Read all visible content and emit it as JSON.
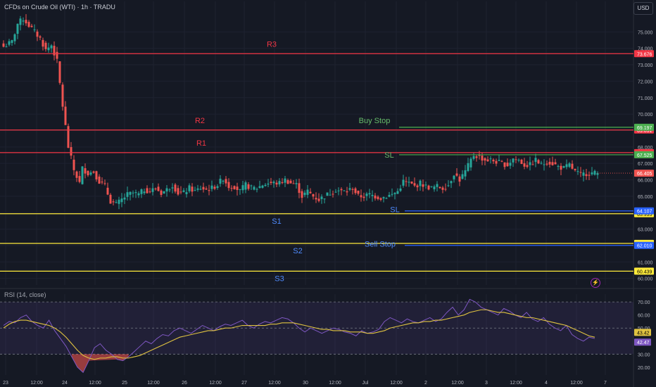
{
  "header": {
    "title": "CFDs on Crude Oil (WTI) · 1h · TRADU",
    "currency_button": "USD",
    "rsi_title": "RSI (14, close)",
    "bolt_icon": "lightning-icon"
  },
  "colors": {
    "background": "#151924",
    "bull": "#26a69a",
    "bear": "#ef5350",
    "resistance": "#f23645",
    "support": "#ffeb3b",
    "buy_stop": "#4caf50",
    "sell_stop": "#2962ff",
    "rsi_line": "#7e57c2",
    "rsi_ma": "#e0c341"
  },
  "chart_data": [
    {
      "type": "candlestick",
      "title": "CFDs on Crude Oil (WTI) · 1h · TRADU",
      "x_ticks": [
        "23",
        "12:00",
        "24",
        "12:00",
        "25",
        "12:00",
        "26",
        "12:00",
        "27",
        "12:00",
        "30",
        "12:00",
        "Jul",
        "12:00",
        "2",
        "12:00",
        "3",
        "12:00",
        "4",
        "12:00",
        "7"
      ],
      "y_ticks": [
        "75.000",
        "74.000",
        "73.000",
        "72.000",
        "71.000",
        "70.000",
        "69.000",
        "68.000",
        "67.000",
        "66.000",
        "65.000",
        "64.000",
        "63.000",
        "62.000",
        "61.000",
        "60.000"
      ],
      "ylim": [
        59.6,
        76.0
      ],
      "close_path": [
        [
          0,
          74.1
        ],
        [
          3,
          74.4
        ],
        [
          5,
          75.5
        ],
        [
          7,
          75.8
        ],
        [
          9,
          75.4
        ],
        [
          11,
          75.0
        ],
        [
          13,
          74.6
        ],
        [
          15,
          73.9
        ],
        [
          17,
          74.2
        ],
        [
          19,
          73.2
        ],
        [
          21,
          70.5
        ],
        [
          23,
          68.0
        ],
        [
          25,
          66.6
        ],
        [
          27,
          65.8
        ],
        [
          28,
          66.7
        ],
        [
          30,
          66.4
        ],
        [
          32,
          66.5
        ],
        [
          34,
          65.9
        ],
        [
          36,
          65.6
        ],
        [
          38,
          64.7
        ],
        [
          40,
          64.5
        ],
        [
          42,
          64.8
        ],
        [
          44,
          65.1
        ],
        [
          46,
          65.2
        ],
        [
          48,
          65.1
        ],
        [
          50,
          65.4
        ],
        [
          52,
          65.3
        ],
        [
          54,
          65.5
        ],
        [
          56,
          65.2
        ],
        [
          58,
          65.4
        ],
        [
          60,
          65.7
        ],
        [
          62,
          65.2
        ],
        [
          64,
          65.2
        ],
        [
          66,
          65.5
        ],
        [
          68,
          65.3
        ],
        [
          70,
          65.5
        ],
        [
          72,
          65.4
        ],
        [
          74,
          65.5
        ],
        [
          76,
          65.7
        ],
        [
          78,
          66.1
        ],
        [
          80,
          65.6
        ],
        [
          82,
          65.6
        ],
        [
          84,
          65.3
        ],
        [
          86,
          65.7
        ],
        [
          88,
          65.5
        ],
        [
          90,
          65.5
        ],
        [
          92,
          65.7
        ],
        [
          94,
          65.8
        ],
        [
          96,
          65.8
        ],
        [
          98,
          65.8
        ],
        [
          100,
          66.0
        ],
        [
          102,
          65.8
        ],
        [
          104,
          65.7
        ],
        [
          106,
          65.0
        ],
        [
          108,
          65.3
        ],
        [
          110,
          65.0
        ],
        [
          112,
          64.8
        ],
        [
          114,
          65.0
        ],
        [
          116,
          65.2
        ],
        [
          118,
          65.4
        ],
        [
          120,
          65.3
        ],
        [
          122,
          65.3
        ],
        [
          124,
          65.5
        ],
        [
          126,
          65.0
        ],
        [
          128,
          65.0
        ],
        [
          130,
          65.1
        ],
        [
          132,
          65.0
        ],
        [
          134,
          64.9
        ],
        [
          136,
          65.0
        ],
        [
          138,
          65.1
        ],
        [
          140,
          65.3
        ],
        [
          142,
          65.9
        ],
        [
          144,
          65.8
        ],
        [
          146,
          65.6
        ],
        [
          148,
          65.8
        ],
        [
          150,
          65.6
        ],
        [
          152,
          65.5
        ],
        [
          154,
          65.6
        ],
        [
          156,
          65.5
        ],
        [
          158,
          65.7
        ],
        [
          160,
          66.4
        ],
        [
          162,
          66.0
        ],
        [
          164,
          66.5
        ],
        [
          166,
          67.2
        ],
        [
          167,
          67.5
        ],
        [
          169,
          67.4
        ],
        [
          171,
          67.2
        ],
        [
          173,
          67.2
        ],
        [
          175,
          67.1
        ],
        [
          177,
          67.0
        ],
        [
          179,
          66.9
        ],
        [
          181,
          67.3
        ],
        [
          183,
          67.2
        ],
        [
          185,
          66.9
        ],
        [
          187,
          66.9
        ],
        [
          189,
          67.2
        ],
        [
          191,
          66.9
        ],
        [
          193,
          67.1
        ],
        [
          195,
          67.0
        ],
        [
          197,
          66.8
        ],
        [
          199,
          66.7
        ],
        [
          201,
          66.9
        ],
        [
          203,
          66.5
        ],
        [
          205,
          66.3
        ],
        [
          207,
          66.4
        ],
        [
          209,
          66.4
        ],
        [
          211,
          66.4
        ]
      ],
      "levels": [
        {
          "label": "R3",
          "value": 73.676,
          "price_tag": "73.676",
          "kind": "resistance"
        },
        {
          "label": "R2",
          "value": 69.031,
          "price_tag": "69.031",
          "kind": "resistance"
        },
        {
          "label": "R1",
          "value": 67.657,
          "price_tag": "67.657",
          "kind": "resistance"
        },
        {
          "label": "S1",
          "value": 63.935,
          "price_tag": "63.935",
          "kind": "support"
        },
        {
          "label": "S2",
          "value": 62.133,
          "price_tag": "62.133",
          "kind": "support"
        },
        {
          "label": "S3",
          "value": 60.439,
          "price_tag": "60.439",
          "kind": "support"
        }
      ],
      "orders": [
        {
          "label": "Buy Stop",
          "value": 69.197,
          "price_tag": "69.197",
          "kind": "buy_stop"
        },
        {
          "label": "SL",
          "value": 67.525,
          "price_tag": "67.525",
          "kind": "buy_stop"
        },
        {
          "label": "SL",
          "value": 64.107,
          "price_tag": "64.107",
          "kind": "sell_stop"
        },
        {
          "label": "Sell Stop",
          "value": 62.01,
          "price_tag": "62.010",
          "kind": "sell_stop"
        }
      ],
      "last_price": {
        "value": 66.405,
        "price_tag": "66.405"
      }
    },
    {
      "type": "line",
      "title": "RSI (14, close)",
      "ylim": [
        14,
        76
      ],
      "y_ticks": [
        "70.00",
        "60.00",
        "50.00",
        "40.00",
        "30.00",
        "20.00"
      ],
      "overbought": 70,
      "oversold": 30,
      "series": [
        {
          "name": "RSI",
          "value_tag": "42.47",
          "values": [
            52,
            55,
            54,
            58,
            60,
            55,
            52,
            50,
            56,
            48,
            42,
            36,
            28,
            20,
            16,
            25,
            35,
            38,
            33,
            30,
            26,
            25,
            28,
            32,
            36,
            40,
            38,
            42,
            45,
            44,
            48,
            50,
            48,
            46,
            49,
            52,
            50,
            48,
            51,
            53,
            52,
            54,
            56,
            52,
            50,
            53,
            55,
            54,
            56,
            58,
            57,
            54,
            50,
            47,
            50,
            48,
            46,
            48,
            50,
            49,
            47,
            46,
            44,
            48,
            46,
            47,
            49,
            55,
            58,
            56,
            54,
            57,
            55,
            54,
            56,
            58,
            55,
            57,
            62,
            66,
            60,
            64,
            72,
            70,
            66,
            64,
            62,
            60,
            65,
            63,
            60,
            58,
            62,
            57,
            55,
            58,
            53,
            50,
            48,
            52,
            45,
            42,
            40,
            43,
            42
          ]
        },
        {
          "name": "RSI-based MA",
          "value_tag": "43.42",
          "values": [
            50,
            53,
            55,
            56,
            56,
            55,
            54,
            53,
            52,
            50,
            47,
            43,
            38,
            33,
            29,
            27,
            26,
            27,
            27,
            28,
            28,
            27,
            27,
            28,
            29,
            31,
            33,
            35,
            37,
            39,
            41,
            43,
            44,
            45,
            46,
            47,
            48,
            48,
            49,
            50,
            50,
            51,
            52,
            52,
            52,
            52,
            52,
            53,
            53,
            54,
            54,
            54,
            53,
            52,
            51,
            50,
            49,
            49,
            48,
            48,
            48,
            47,
            47,
            47,
            46,
            46,
            47,
            48,
            50,
            51,
            52,
            53,
            54,
            54,
            55,
            55,
            56,
            56,
            57,
            58,
            59,
            60,
            62,
            63,
            64,
            64,
            63,
            62,
            62,
            61,
            60,
            59,
            58,
            58,
            57,
            56,
            55,
            54,
            53,
            52,
            50,
            48,
            46,
            44,
            43
          ]
        }
      ],
      "value_ticks": [
        {
          "label": "43.42"
        },
        {
          "label": "42.47"
        }
      ]
    }
  ]
}
